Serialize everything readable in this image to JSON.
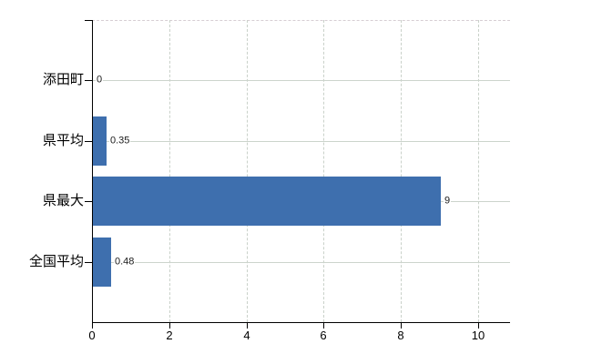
{
  "chart_data": {
    "type": "bar",
    "orientation": "horizontal",
    "categories": [
      "添田町",
      "県平均",
      "県最大",
      "全国平均"
    ],
    "values": [
      0,
      0.35,
      9,
      0.48
    ],
    "value_labels": [
      "0",
      "0.35",
      "9",
      "0.48"
    ],
    "x_tick_labels": [
      "0",
      "2",
      "4",
      "6",
      "8",
      "10"
    ],
    "x_tick_values": [
      0,
      2,
      4,
      6,
      8,
      10
    ],
    "xlim": [
      0,
      10.8
    ],
    "grid": "on",
    "legend": "none",
    "bar_color": "#3e6fae",
    "axis_color": "#000000",
    "h_grid_color": "#ccd4cc",
    "v_grid_color": "#c9d1c9",
    "text_color": "#000000"
  }
}
